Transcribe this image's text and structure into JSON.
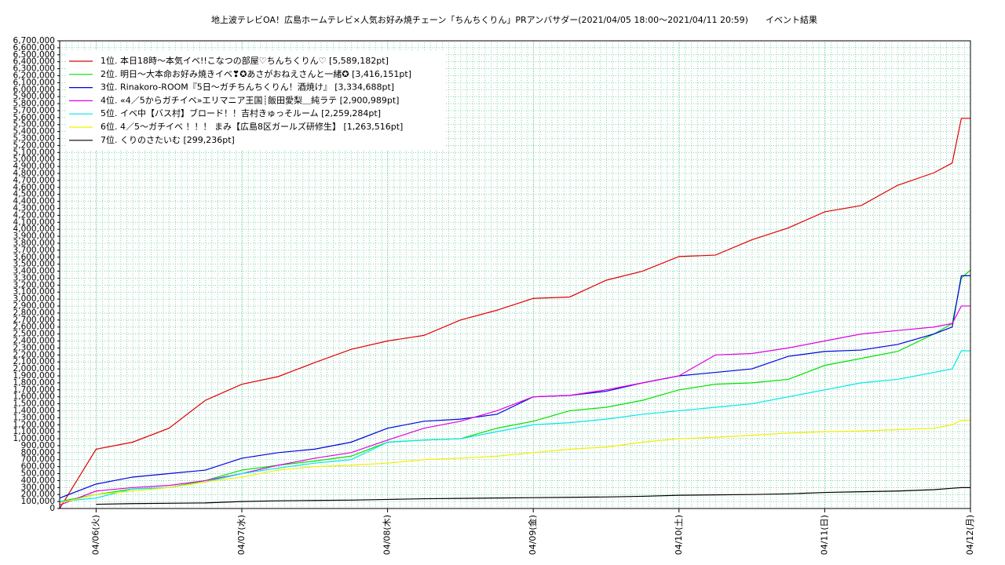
{
  "chart_data": {
    "type": "line",
    "title": "地上波テレビOA！広島ホームテレビ×人気お好み焼チェーン「ちんちくりん」PRアンバサダー(2021/04/05 18:00〜2021/04/11 20:59)　　イベント結果",
    "x": [
      "04/05 18:00",
      "04/06 00:00",
      "04/06 06:00",
      "04/06 12:00",
      "04/06 18:00",
      "04/07 00:00",
      "04/07 06:00",
      "04/07 12:00",
      "04/07 18:00",
      "04/08 00:00",
      "04/08 06:00",
      "04/08 12:00",
      "04/08 18:00",
      "04/09 00:00",
      "04/09 06:00",
      "04/09 12:00",
      "04/09 18:00",
      "04/10 00:00",
      "04/10 06:00",
      "04/10 12:00",
      "04/10 18:00",
      "04/11 00:00",
      "04/11 06:00",
      "04/11 12:00",
      "04/11 18:00",
      "04/11 21:00",
      "04/11 22:30",
      "04/12 00:00"
    ],
    "xlim": [
      "04/05 18:00",
      "04/12 00:00"
    ],
    "xticks": [
      {
        "value": "04/06 00:00",
        "label": "04/06(火)"
      },
      {
        "value": "04/07 00:00",
        "label": "04/07(水)"
      },
      {
        "value": "04/08 00:00",
        "label": "04/08(木)"
      },
      {
        "value": "04/09 00:00",
        "label": "04/09(金)"
      },
      {
        "value": "04/10 00:00",
        "label": "04/10(土)"
      },
      {
        "value": "04/11 00:00",
        "label": "04/11(日)"
      },
      {
        "value": "04/12 00:00",
        "label": "04/12(月)"
      }
    ],
    "ylim": [
      0,
      6700000
    ],
    "yticks": [
      0,
      {
        "value": 100000,
        "label": "100,000"
      },
      {
        "value": 200000,
        "label": "200,000"
      },
      {
        "value": 300000,
        "label": "300,000"
      },
      {
        "value": 400000,
        "label": "400,000"
      },
      {
        "value": 500000,
        "label": "500,000"
      },
      {
        "value": 600000,
        "label": "600,000"
      },
      {
        "value": 700000,
        "label": "700,000"
      },
      {
        "value": 800000,
        "label": "800,000"
      },
      {
        "value": 900000,
        "label": "900,000"
      },
      {
        "value": 1000000,
        "label": "1,000,000"
      },
      {
        "value": 1100000,
        "label": "1,100,000"
      },
      {
        "value": 1200000,
        "label": "1,200,000"
      },
      {
        "value": 1300000,
        "label": "1,300,000"
      },
      {
        "value": 1400000,
        "label": "1,400,000"
      },
      {
        "value": 1500000,
        "label": "1,500,000"
      },
      {
        "value": 1600000,
        "label": "1,600,000"
      },
      {
        "value": 1700000,
        "label": "1,700,000"
      },
      {
        "value": 1800000,
        "label": "1,800,000"
      },
      {
        "value": 1900000,
        "label": "1,900,000"
      },
      {
        "value": 2000000,
        "label": "2,000,000"
      },
      {
        "value": 2100000,
        "label": "2,100,000"
      },
      {
        "value": 2200000,
        "label": "2,200,000"
      },
      {
        "value": 2300000,
        "label": "2,300,000"
      },
      {
        "value": 2400000,
        "label": "2,400,000"
      },
      {
        "value": 2500000,
        "label": "2,500,000"
      },
      {
        "value": 2600000,
        "label": "2,600,000"
      },
      {
        "value": 2700000,
        "label": "2,700,000"
      },
      {
        "value": 2800000,
        "label": "2,800,000"
      },
      {
        "value": 2900000,
        "label": "2,900,000"
      },
      {
        "value": 3000000,
        "label": "3,000,000"
      },
      {
        "value": 3100000,
        "label": "3,100,000"
      },
      {
        "value": 3200000,
        "label": "3,200,000"
      },
      {
        "value": 3300000,
        "label": "3,300,000"
      },
      {
        "value": 3400000,
        "label": "3,400,000"
      },
      {
        "value": 3500000,
        "label": "3,500,000"
      },
      {
        "value": 3600000,
        "label": "3,600,000"
      },
      {
        "value": 3700000,
        "label": "3,700,000"
      },
      {
        "value": 3800000,
        "label": "3,800,000"
      },
      {
        "value": 3900000,
        "label": "3,900,000"
      },
      {
        "value": 4000000,
        "label": "4,000,000"
      },
      {
        "value": 4100000,
        "label": "4,100,000"
      },
      {
        "value": 4200000,
        "label": "4,200,000"
      },
      {
        "value": 4300000,
        "label": "4,300,000"
      },
      {
        "value": 4400000,
        "label": "4,400,000"
      },
      {
        "value": 4500000,
        "label": "4,500,000"
      },
      {
        "value": 4600000,
        "label": "4,600,000"
      },
      {
        "value": 4700000,
        "label": "4,700,000"
      },
      {
        "value": 4800000,
        "label": "4,800,000"
      },
      {
        "value": 4900000,
        "label": "4,900,000"
      },
      {
        "value": 5000000,
        "label": "5,000,000"
      },
      {
        "value": 5100000,
        "label": "5,100,000"
      },
      {
        "value": 5200000,
        "label": "5,200,000"
      },
      {
        "value": 5300000,
        "label": "5,300,000"
      },
      {
        "value": 5400000,
        "label": "5,400,000"
      },
      {
        "value": 5500000,
        "label": "5,500,000"
      },
      {
        "value": 5600000,
        "label": "5,600,000"
      },
      {
        "value": 5700000,
        "label": "5,700,000"
      },
      {
        "value": 5800000,
        "label": "5,800,000"
      },
      {
        "value": 5900000,
        "label": "5,900,000"
      },
      {
        "value": 6000000,
        "label": "6,000,000"
      },
      {
        "value": 6100000,
        "label": "6,100,000"
      },
      {
        "value": 6200000,
        "label": "6,200,000"
      },
      {
        "value": 6300000,
        "label": "6,300,000"
      },
      {
        "value": 6400000,
        "label": "6,400,000"
      },
      {
        "value": 6500000,
        "label": "6,500,000"
      },
      {
        "value": 6600000,
        "label": "6,600,000"
      },
      {
        "value": 6700000,
        "label": "6,700,000"
      }
    ],
    "grid": true,
    "legend": "upper-left",
    "series": [
      {
        "name": "1位. 本日18時〜本気イベ!!こなつの部屋♡ちんちくりん♡ [5,589,182pt]",
        "color": "#e00000",
        "values": [
          0,
          850000,
          950000,
          1150000,
          1550000,
          1780000,
          1890000,
          2090000,
          2280000,
          2400000,
          2480000,
          2700000,
          2840000,
          3010000,
          3030000,
          3270000,
          3400000,
          3610000,
          3630000,
          3850000,
          4020000,
          4250000,
          4340000,
          4630000,
          4810000,
          4950000,
          5589182,
          5589182
        ]
      },
      {
        "name": "2位. 明日〜大本命お好み焼きイベ❣✪あさがおねえさんと一緒✪ [3,416,151pt]",
        "color": "#00e000",
        "values": [
          100000,
          200000,
          280000,
          300000,
          400000,
          550000,
          620000,
          680000,
          750000,
          950000,
          980000,
          1000000,
          1150000,
          1250000,
          1400000,
          1450000,
          1550000,
          1700000,
          1780000,
          1800000,
          1850000,
          2050000,
          2150000,
          2250000,
          2500000,
          2650000,
          3300000,
          3416151
        ]
      },
      {
        "name": "3位. Rinakoro-ROOM『5日〜ガチちんちくりん！酒焼け』 [3,334,688pt]",
        "color": "#0000e0",
        "values": [
          150000,
          350000,
          450000,
          500000,
          550000,
          720000,
          800000,
          850000,
          950000,
          1150000,
          1250000,
          1280000,
          1350000,
          1600000,
          1620000,
          1680000,
          1800000,
          1900000,
          1950000,
          2000000,
          2180000,
          2250000,
          2270000,
          2350000,
          2500000,
          2600000,
          3334688,
          3334688
        ]
      },
      {
        "name": "4位. «4／5からガチイベ»エリマニア王国┊飯田愛梨＿純ラテ [2,900,989pt]",
        "color": "#e000e0",
        "values": [
          50000,
          250000,
          300000,
          330000,
          400000,
          500000,
          620000,
          720000,
          800000,
          980000,
          1150000,
          1250000,
          1400000,
          1600000,
          1620000,
          1700000,
          1800000,
          1900000,
          2200000,
          2220000,
          2300000,
          2400000,
          2500000,
          2550000,
          2600000,
          2650000,
          2900989,
          2900989
        ]
      },
      {
        "name": "5位. イベ中【バス村】ブロード！！吉村きゅっそルーム [2,259,284pt]",
        "color": "#00e8e8",
        "values": [
          100000,
          150000,
          280000,
          300000,
          380000,
          500000,
          580000,
          650000,
          700000,
          950000,
          980000,
          1000000,
          1100000,
          1200000,
          1230000,
          1280000,
          1350000,
          1400000,
          1450000,
          1500000,
          1600000,
          1700000,
          1800000,
          1850000,
          1950000,
          2000000,
          2259284,
          2259284
        ]
      },
      {
        "name": "6位. 4／5〜ガチイベ ！！！ まみ【広島8区ガールズ研修生】 [1,263,516pt]",
        "color": "#f0f000",
        "values": [
          80000,
          200000,
          250000,
          300000,
          380000,
          450000,
          550000,
          600000,
          620000,
          650000,
          700000,
          720000,
          750000,
          800000,
          850000,
          880000,
          950000,
          1000000,
          1020000,
          1050000,
          1080000,
          1100000,
          1110000,
          1130000,
          1150000,
          1200000,
          1263516,
          1263516
        ]
      },
      {
        "name": "7位. くりのさたいむ [299,236pt]",
        "color": "#000000",
        "values": [
          null,
          60000,
          70000,
          75000,
          80000,
          100000,
          110000,
          115000,
          120000,
          130000,
          140000,
          145000,
          150000,
          155000,
          160000,
          165000,
          175000,
          190000,
          195000,
          200000,
          210000,
          230000,
          240000,
          250000,
          270000,
          290000,
          299236,
          299236
        ]
      }
    ]
  }
}
